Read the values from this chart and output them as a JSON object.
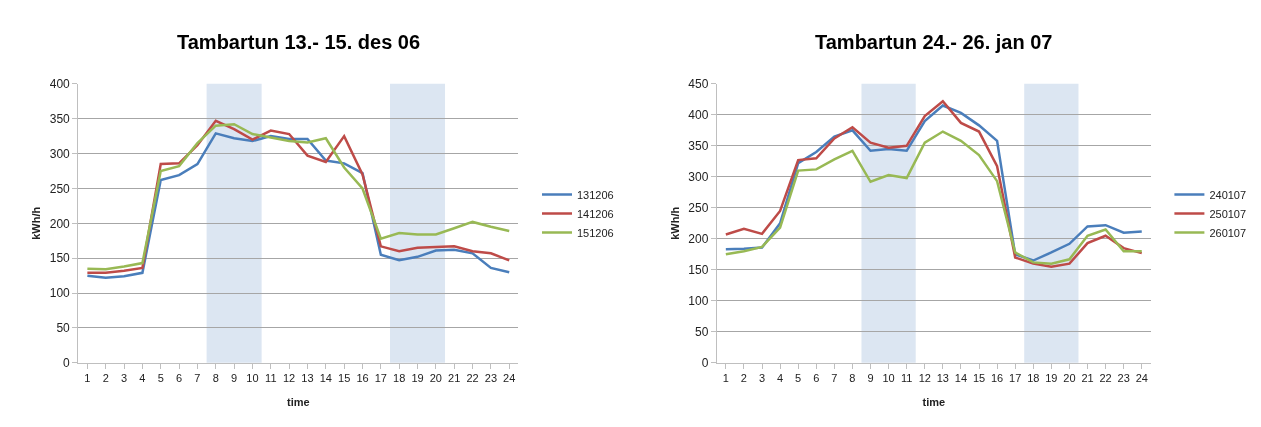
{
  "chart_data": [
    {
      "type": "line",
      "title": "Tambartun 13.- 15. des 06",
      "xlabel": "time",
      "ylabel": "kWh/h",
      "x": [
        1,
        2,
        3,
        4,
        5,
        6,
        7,
        8,
        9,
        10,
        11,
        12,
        13,
        14,
        15,
        16,
        17,
        18,
        19,
        20,
        21,
        22,
        23,
        24
      ],
      "xlim": [
        0.5,
        24.5
      ],
      "xticks": [
        1,
        2,
        3,
        4,
        5,
        6,
        7,
        8,
        9,
        10,
        11,
        12,
        13,
        14,
        15,
        16,
        17,
        18,
        19,
        20,
        21,
        22,
        23,
        24
      ],
      "ylim": [
        0,
        400
      ],
      "yticks": [
        0,
        50,
        100,
        150,
        200,
        250,
        300,
        350,
        400
      ],
      "grid": "y",
      "legend": "right",
      "marker": "none",
      "bands": [
        {
          "axis": "x",
          "from": 7.5,
          "to": 10.5,
          "color": "#dce6f2"
        },
        {
          "axis": "x",
          "from": 17.5,
          "to": 20.5,
          "color": "#dce6f2"
        }
      ],
      "series": [
        {
          "name": "131206",
          "color": "#4a7ebb",
          "values": [
            125,
            122,
            124,
            129,
            262,
            269,
            285,
            329,
            322,
            318,
            325,
            321,
            321,
            290,
            286,
            272,
            155,
            147,
            152,
            161,
            162,
            157,
            136,
            130
          ]
        },
        {
          "name": "141206",
          "color": "#be4b48",
          "values": [
            129,
            129,
            132,
            136,
            285,
            286,
            312,
            347,
            335,
            320,
            333,
            328,
            297,
            288,
            325,
            270,
            167,
            160,
            165,
            166,
            167,
            160,
            157,
            147
          ]
        },
        {
          "name": "151206",
          "color": "#98b954",
          "values": [
            135,
            134,
            138,
            143,
            275,
            282,
            315,
            340,
            342,
            328,
            323,
            318,
            316,
            322,
            280,
            250,
            178,
            186,
            184,
            184,
            193,
            202,
            195,
            189
          ]
        }
      ]
    },
    {
      "type": "line",
      "title": "Tambartun 24.- 26. jan 07",
      "xlabel": "time",
      "ylabel": "kWh/h",
      "x": [
        1,
        2,
        3,
        4,
        5,
        6,
        7,
        8,
        9,
        10,
        11,
        12,
        13,
        14,
        15,
        16,
        17,
        18,
        19,
        20,
        21,
        22,
        23,
        24
      ],
      "xlim": [
        0.5,
        24.5
      ],
      "xticks": [
        1,
        2,
        3,
        4,
        5,
        6,
        7,
        8,
        9,
        10,
        11,
        12,
        13,
        14,
        15,
        16,
        17,
        18,
        19,
        20,
        21,
        22,
        23,
        24
      ],
      "ylim": [
        0,
        450
      ],
      "yticks": [
        0,
        50,
        100,
        150,
        200,
        250,
        300,
        350,
        400,
        450
      ],
      "grid": "y",
      "legend": "right",
      "marker": "none",
      "bands": [
        {
          "axis": "x",
          "from": 8.5,
          "to": 11.5,
          "color": "#dce6f2"
        },
        {
          "axis": "x",
          "from": 17.5,
          "to": 20.5,
          "color": "#dce6f2"
        }
      ],
      "series": [
        {
          "name": "240107",
          "color": "#4a7ebb",
          "values": [
            183,
            184,
            186,
            225,
            322,
            340,
            365,
            375,
            342,
            345,
            342,
            390,
            415,
            403,
            383,
            358,
            175,
            165,
            178,
            192,
            220,
            222,
            210,
            212
          ]
        },
        {
          "name": "250107",
          "color": "#be4b48",
          "values": [
            207,
            216,
            208,
            245,
            327,
            330,
            362,
            380,
            355,
            347,
            350,
            398,
            422,
            387,
            373,
            317,
            170,
            160,
            155,
            160,
            193,
            205,
            185,
            177
          ]
        },
        {
          "name": "260107",
          "color": "#98b954",
          "values": [
            175,
            180,
            187,
            218,
            310,
            312,
            328,
            342,
            292,
            303,
            298,
            355,
            373,
            358,
            335,
            293,
            178,
            162,
            160,
            167,
            205,
            215,
            180,
            180
          ]
        }
      ]
    }
  ]
}
